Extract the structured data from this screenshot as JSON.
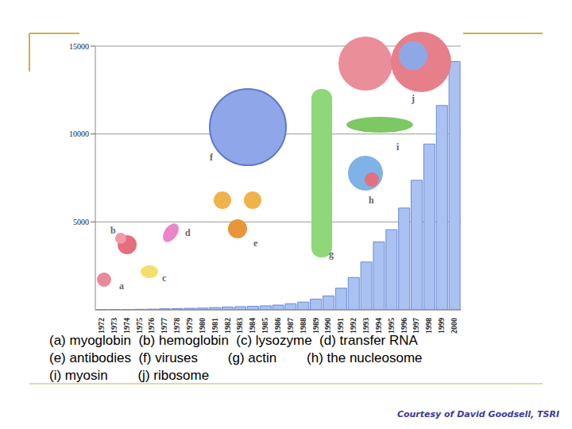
{
  "chart_data": {
    "type": "bar",
    "categories": [
      "1972",
      "1973",
      "1974",
      "1975",
      "1976",
      "1977",
      "1978",
      "1979",
      "1980",
      "1981",
      "1982",
      "1983",
      "1984",
      "1985",
      "1986",
      "1987",
      "1988",
      "1989",
      "1990",
      "1991",
      "1992",
      "1993",
      "1994",
      "1995",
      "1996",
      "1997",
      "1998",
      "1999",
      "2000"
    ],
    "values": [
      10,
      15,
      20,
      30,
      40,
      60,
      70,
      90,
      100,
      130,
      160,
      180,
      200,
      230,
      270,
      350,
      440,
      610,
      790,
      1230,
      1840,
      2720,
      3860,
      4560,
      5790,
      7370,
      9430,
      11620,
      14120
    ],
    "color": "#a9c2f2",
    "ylim": [
      0,
      15000
    ],
    "yticks": [
      5000,
      10000,
      15000
    ],
    "grid": true,
    "annotations": [
      "a",
      "b",
      "c",
      "d",
      "e",
      "f",
      "g",
      "h",
      "i",
      "j"
    ]
  },
  "caption": [
    "(a) myoglobin  (b) hemoglobin  (c) lysozyme  (d) transfer RNA",
    "(e) antibodies  (f) viruses        (g) actin        (h) the nucleosome",
    "(i) myosin        (j) ribosome"
  ],
  "credit": "Courtesy of David Goodsell, TSRI"
}
